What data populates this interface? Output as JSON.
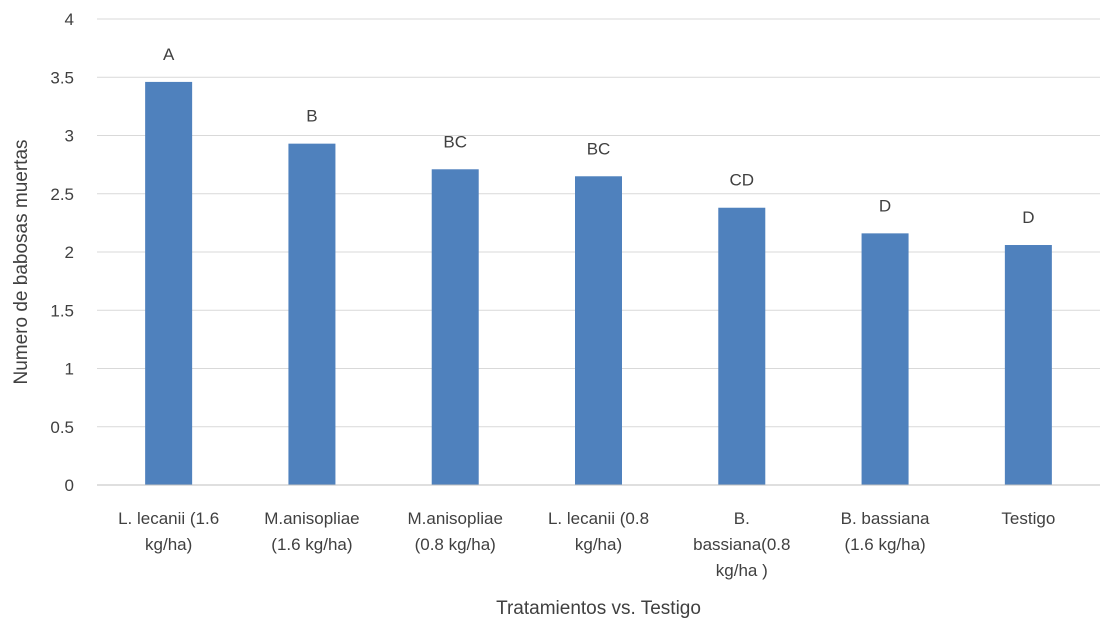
{
  "chart_data": {
    "type": "bar",
    "title": "",
    "xlabel": "Tratamientos vs. Testigo",
    "ylabel": "Numero de babosas muertas",
    "ylim": [
      0,
      4
    ],
    "yticks": [
      "0",
      "0.5",
      "1",
      "1.5",
      "2",
      "2.5",
      "3",
      "3.5",
      "4"
    ],
    "grid": true,
    "legend": "none",
    "bar_color": "#4f81bd",
    "categories": [
      [
        "L. lecanii (1.6",
        "kg/ha)"
      ],
      [
        "M.anisopliae",
        "(1.6 kg/ha)"
      ],
      [
        "M.anisopliae",
        "(0.8 kg/ha)"
      ],
      [
        "L. lecanii (0.8",
        "kg/ha)"
      ],
      [
        "B.",
        "bassiana(0.8",
        "kg/ha )"
      ],
      [
        "B. bassiana",
        "(1.6 kg/ha)"
      ],
      [
        "Testigo"
      ]
    ],
    "values": [
      3.46,
      2.93,
      2.71,
      2.65,
      2.38,
      2.16,
      2.06
    ],
    "data_labels": [
      "A",
      "B",
      "BC",
      "BC",
      "CD",
      "D",
      "D"
    ]
  }
}
